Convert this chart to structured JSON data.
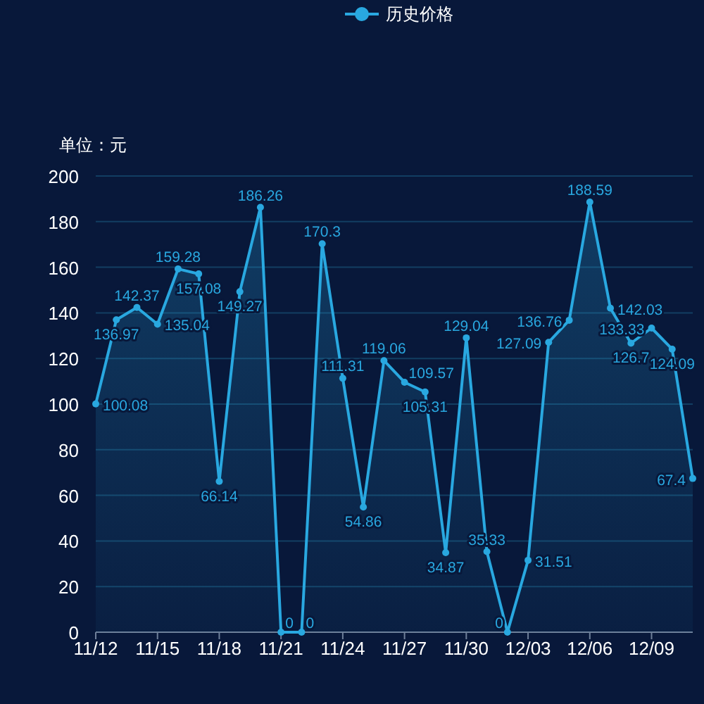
{
  "chart_data": {
    "type": "area",
    "ylabel": "单位：元",
    "categories": [
      "11/12",
      null,
      null,
      "11/15",
      null,
      null,
      "11/18",
      null,
      null,
      "11/21",
      null,
      null,
      "11/24",
      null,
      null,
      "11/27",
      null,
      null,
      "11/30",
      null,
      null,
      "12/03",
      null,
      null,
      "12/06",
      null,
      null,
      "12/09",
      null,
      null
    ],
    "series": [
      {
        "name": "历史价格",
        "color": "#29a8e0",
        "values": [
          100.08,
          136.97,
          142.37,
          135.04,
          159.28,
          157.08,
          66.14,
          149.27,
          186.26,
          0,
          0,
          170.3,
          111.31,
          54.86,
          119.06,
          109.57,
          105.31,
          34.87,
          129.04,
          35.33,
          0,
          31.51,
          127.09,
          136.76,
          188.59,
          142.03,
          126.7,
          133.33,
          124.09,
          67.4
        ]
      }
    ],
    "ylim": [
      0,
      200
    ],
    "yticks": [
      0,
      20,
      40,
      60,
      80,
      100,
      120,
      140,
      160,
      180,
      200
    ],
    "grid": "y",
    "legend": "top",
    "marker": "circle",
    "data_labels": true
  }
}
